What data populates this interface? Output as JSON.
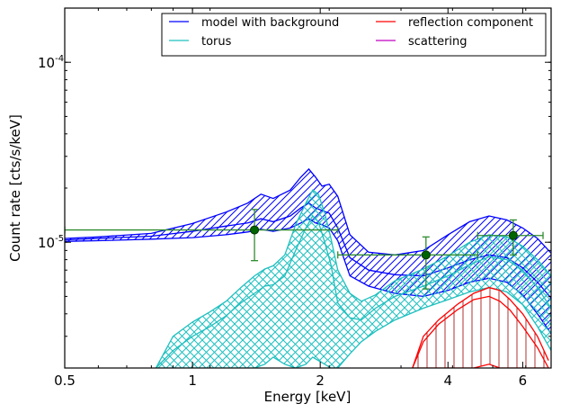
{
  "chart_data": {
    "type": "line",
    "title": "",
    "xlabel": "Energy [keV]",
    "ylabel": "Count rate [cts/s/keV]",
    "xscale": "log",
    "yscale": "log",
    "xlim": [
      0.5,
      7.0
    ],
    "ylim": [
      2e-06,
      0.0002
    ],
    "x_ticks": [
      {
        "value": 0.5,
        "label": "0.5"
      },
      {
        "value": 1,
        "label": "1"
      },
      {
        "value": 2,
        "label": "2"
      },
      {
        "value": 4,
        "label": "4"
      },
      {
        "value": 6,
        "label": "6"
      }
    ],
    "y_ticks": [
      {
        "value": 1e-05,
        "label": "10",
        "exp": "-5"
      },
      {
        "value": 0.0001,
        "label": "10",
        "exp": "-4"
      }
    ],
    "legend_position": "top-right",
    "legend": [
      {
        "name": "model with background",
        "color": "#0000ff"
      },
      {
        "name": "reflection component",
        "color": "#ff0000"
      },
      {
        "name": "torus",
        "color": "#1fbfbf"
      },
      {
        "name": "scattering",
        "color": "#bf00bf"
      }
    ],
    "series": [
      {
        "name": "model with background",
        "color": "#0000ff",
        "x": [
          0.5,
          0.6,
          0.8,
          1.0,
          1.2,
          1.35,
          1.45,
          1.55,
          1.7,
          1.8,
          1.88,
          1.95,
          2.02,
          2.1,
          2.2,
          2.35,
          2.6,
          3.0,
          3.5,
          4.0,
          4.5,
          5.0,
          5.5,
          6.0,
          6.5,
          7.0
        ],
        "center": [
          1.03e-05,
          1.05e-05,
          1.08e-05,
          1.15e-05,
          1.23e-05,
          1.28e-05,
          1.35e-05,
          1.3e-05,
          1.4e-05,
          1.55e-05,
          1.65e-05,
          1.55e-05,
          1.5e-05,
          1.45e-05,
          1.2e-05,
          8.2e-06,
          7e-06,
          6.6e-06,
          6.5e-06,
          7.2e-06,
          8e-06,
          8.5e-06,
          8.2e-06,
          7.2e-06,
          6e-06,
          4.9e-06
        ],
        "upper": [
          1.05e-05,
          1.07e-05,
          1.12e-05,
          1.27e-05,
          1.47e-05,
          1.65e-05,
          1.85e-05,
          1.75e-05,
          1.95e-05,
          2.3e-05,
          2.55e-05,
          2.3e-05,
          2.05e-05,
          2.1e-05,
          1.8e-05,
          1.1e-05,
          8.8e-06,
          8.5e-06,
          9e-06,
          1.1e-05,
          1.3e-05,
          1.4e-05,
          1.33e-05,
          1.2e-05,
          1.05e-05,
          8.7e-06
        ],
        "lower": [
          1.01e-05,
          1.02e-05,
          1.04e-05,
          1.06e-05,
          1.1e-05,
          1.14e-05,
          1.18e-05,
          1.15e-05,
          1.2e-05,
          1.28e-05,
          1.35e-05,
          1.28e-05,
          1.25e-05,
          1.2e-05,
          1.02e-05,
          6.5e-06,
          5.7e-06,
          5.2e-06,
          5e-06,
          5.4e-06,
          6e-06,
          6.3e-06,
          6e-06,
          5.1e-06,
          4e-06,
          3.1e-06
        ]
      },
      {
        "name": "torus",
        "color": "#1fbfbf",
        "x": [
          0.82,
          0.9,
          1.0,
          1.1,
          1.2,
          1.3,
          1.4,
          1.48,
          1.55,
          1.65,
          1.75,
          1.85,
          1.92,
          1.98,
          2.05,
          2.12,
          2.2,
          2.35,
          2.5,
          2.7,
          3.0,
          3.5,
          4.0,
          4.5,
          5.0,
          5.5,
          6.0,
          6.5,
          7.0
        ],
        "center": [
          2e-06,
          2.5e-06,
          3e-06,
          3.4e-06,
          3.9e-06,
          4.6e-06,
          5.2e-06,
          5.7e-06,
          5.8e-06,
          6.5e-06,
          9e-06,
          1.2e-05,
          1.4e-05,
          1.3e-05,
          1e-05,
          7.5e-06,
          4.6e-06,
          3.8e-06,
          3.7e-06,
          4.3e-06,
          5e-06,
          5.7e-06,
          6.5e-06,
          7.5e-06,
          8.3e-06,
          8e-06,
          7e-06,
          5.6e-06,
          4.3e-06
        ],
        "upper": [
          2e-06,
          3e-06,
          3.6e-06,
          4.1e-06,
          4.7e-06,
          5.6e-06,
          6.5e-06,
          7.1e-06,
          7.4e-06,
          8.5e-06,
          1.25e-05,
          1.65e-05,
          1.95e-05,
          1.85e-05,
          1.45e-05,
          1.05e-05,
          7e-06,
          5.2e-06,
          4.7e-06,
          5.1e-06,
          6.1e-06,
          7.1e-06,
          8.4e-06,
          1e-05,
          1.1e-05,
          1.07e-05,
          9.5e-06,
          8e-06,
          6.5e-06
        ],
        "lower": [
          2e-06,
          2e-06,
          2e-06,
          2e-06,
          2e-06,
          2e-06,
          2e-06,
          2.1e-06,
          2.3e-06,
          2.1e-06,
          2e-06,
          2.1e-06,
          2.3e-06,
          2.2e-06,
          2.1e-06,
          2e-06,
          2e-06,
          2.4e-06,
          2.8e-06,
          3.2e-06,
          3.7e-06,
          4.3e-06,
          4.8e-06,
          5.3e-06,
          5.6e-06,
          5.3e-06,
          4.5e-06,
          3.4e-06,
          2.5e-06
        ]
      },
      {
        "name": "reflection component",
        "color": "#ff0000",
        "x": [
          3.3,
          3.5,
          3.8,
          4.2,
          4.6,
          5.0,
          5.3,
          5.6,
          6.0,
          6.5,
          6.9
        ],
        "center": [
          2e-06,
          2.8e-06,
          3.5e-06,
          4.2e-06,
          4.8e-06,
          5e-06,
          4.7e-06,
          4.2e-06,
          3.4e-06,
          2.6e-06,
          2e-06
        ],
        "upper": [
          2e-06,
          3e-06,
          3.7e-06,
          4.5e-06,
          5.2e-06,
          5.6e-06,
          5.4e-06,
          4.8e-06,
          4e-06,
          3e-06,
          2.2e-06
        ],
        "lower": [
          2e-06,
          2e-06,
          2e-06,
          2e-06,
          2e-06,
          2.1e-06,
          2e-06,
          2e-06,
          2e-06,
          2e-06,
          2e-06
        ]
      }
    ],
    "data_points": {
      "name": "data",
      "color": "#006400",
      "points": [
        {
          "x": 1.4,
          "xlo": 0.5,
          "xhi": 2.2,
          "y": 1.17e-05,
          "ylo": 7.9e-06,
          "yhi": 1.52e-05
        },
        {
          "x": 3.55,
          "xlo": 2.2,
          "xhi": 4.7,
          "y": 8.5e-06,
          "ylo": 5.5e-06,
          "yhi": 1.07e-05
        },
        {
          "x": 5.7,
          "xlo": 4.7,
          "xhi": 6.7,
          "y": 1.09e-05,
          "ylo": 8.5e-06,
          "yhi": 1.33e-05
        }
      ]
    }
  }
}
